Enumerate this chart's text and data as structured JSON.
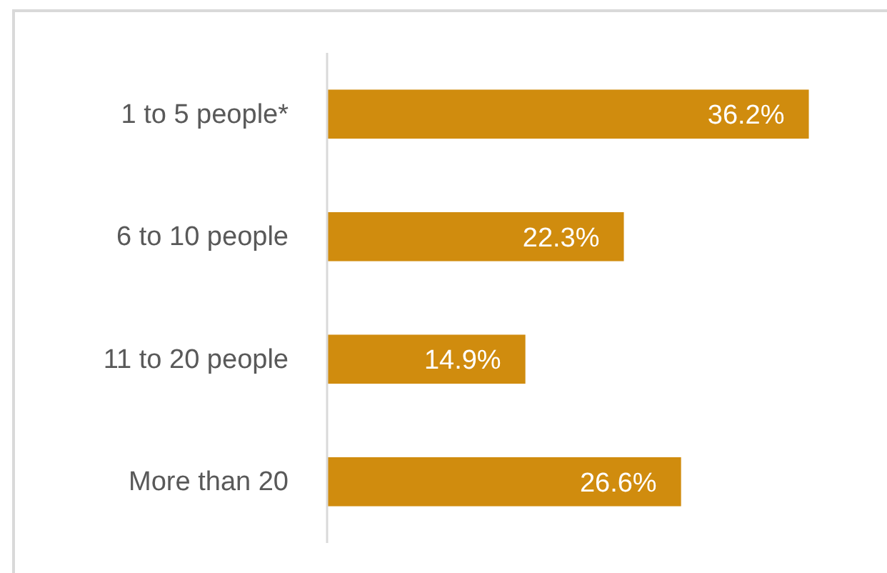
{
  "chart_data": {
    "type": "bar",
    "orientation": "horizontal",
    "categories": [
      "1 to 5 people*",
      "6 to 10 people",
      "11 to 20 people",
      "More than 20"
    ],
    "values": [
      36.2,
      22.3,
      14.9,
      26.6
    ],
    "value_labels": [
      "36.2%",
      "22.3%",
      "14.9%",
      "26.6%"
    ],
    "color": "#d08c0e",
    "tick_labels": "y"
  }
}
